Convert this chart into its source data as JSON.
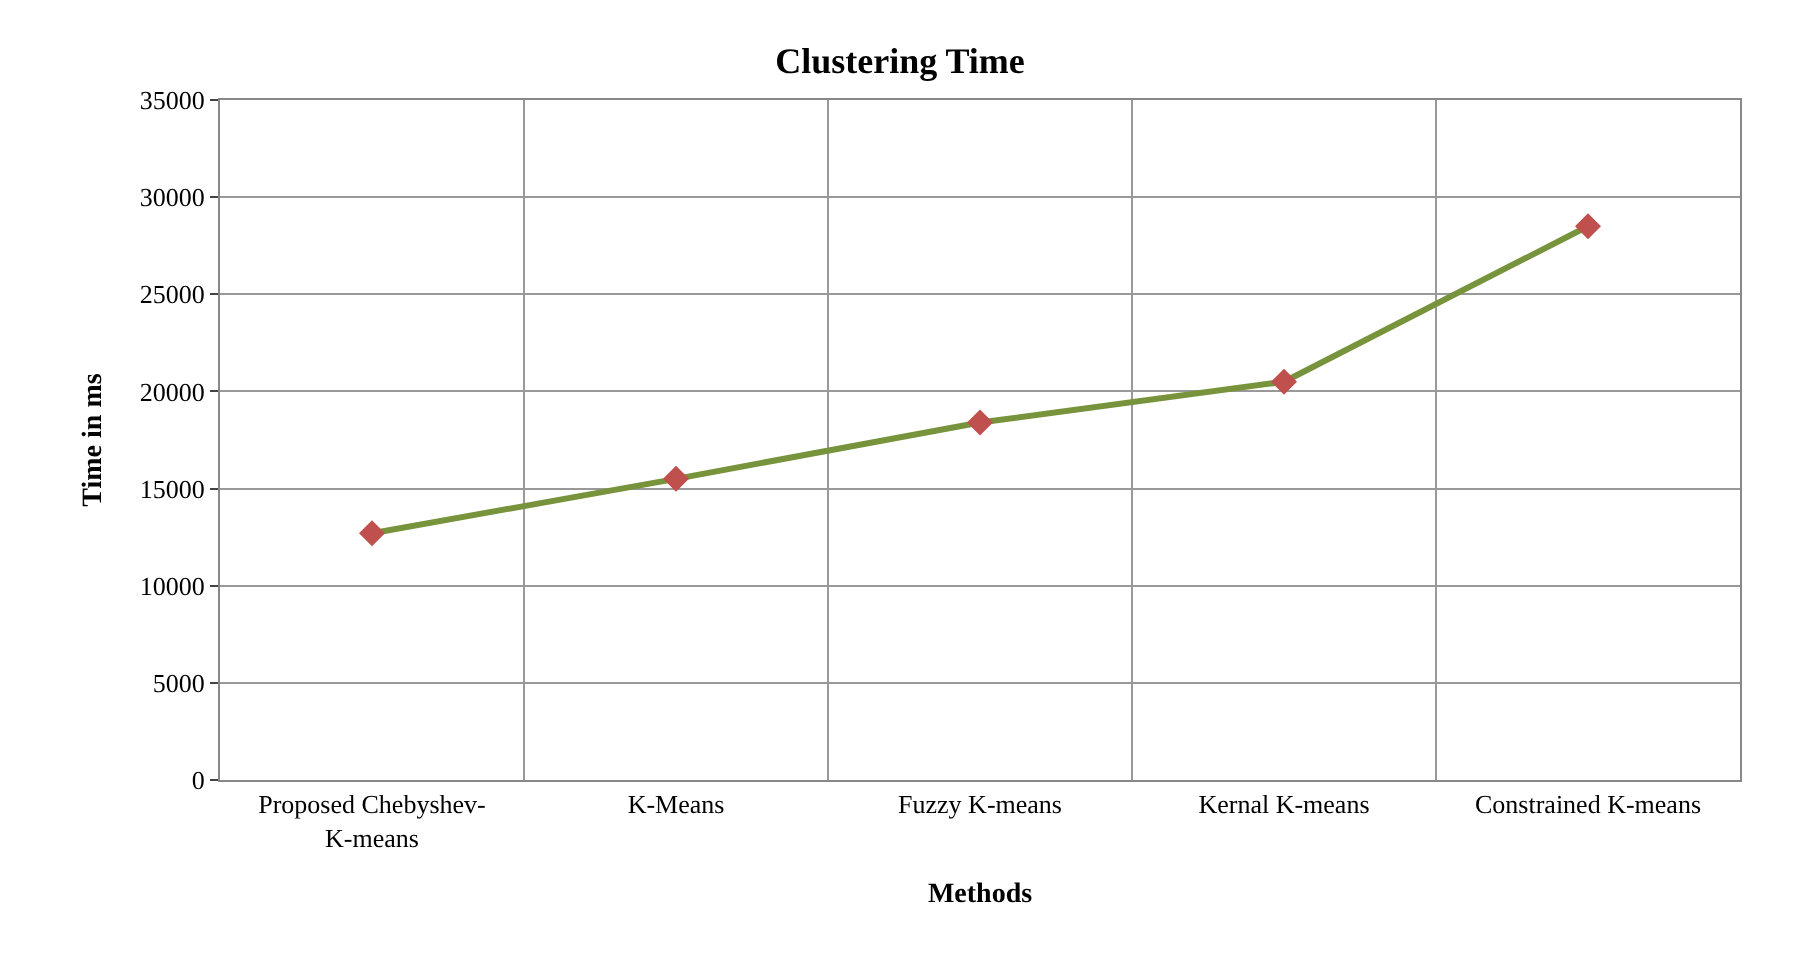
{
  "chart_data": {
    "type": "line",
    "title": "Clustering Time",
    "xlabel": "Methods",
    "ylabel": "Time in ms",
    "categories": [
      "Proposed Chebyshev-K-means",
      "K-Means",
      "Fuzzy K-means",
      "Kernal K-means",
      "Constrained K-means"
    ],
    "series": [
      {
        "color": "#77933c",
        "colors": [
          "#c0504d",
          "#c0504d",
          "#c0504d",
          "#c0504d",
          "#c0504d"
        ],
        "values": [
          12700,
          15500,
          18400,
          20500,
          28500
        ]
      }
    ],
    "ylim": [
      0,
      35000
    ],
    "yticks": [
      0,
      5000,
      10000,
      15000,
      20000,
      25000,
      30000,
      35000
    ],
    "grid": true,
    "legend": false,
    "marker": "diamond",
    "line_style": "solid"
  }
}
